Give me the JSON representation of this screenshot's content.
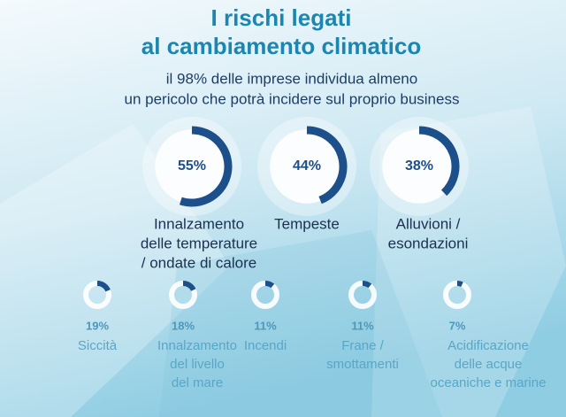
{
  "chart_data": {
    "type": "donut",
    "title": [
      "I rischi legati",
      "al cambiamento climatico"
    ],
    "subtitle": [
      "il 98% delle imprese individua almeno",
      "un pericolo che potrà incidere sul proprio business"
    ],
    "categories": [
      [
        "Innalzamento",
        "delle temperature",
        "/ ondate di calore"
      ],
      [
        "Tempeste"
      ],
      [
        "Alluvioni /",
        "esondazioni"
      ],
      [
        "Siccità"
      ],
      [
        "Innalzamento",
        "del livello",
        "del mare"
      ],
      [
        "Incendi"
      ],
      [
        "Frane /",
        "smottamenti"
      ],
      [
        "Acidificazione",
        "delle acque",
        "oceaniche e marine"
      ]
    ],
    "values": [
      55,
      44,
      38,
      19,
      18,
      11,
      11,
      7
    ],
    "value_labels": [
      "55%",
      "44%",
      "38%",
      "19%",
      "18%",
      "11%",
      "11%",
      "7%"
    ],
    "color": "#1d4f8a"
  }
}
